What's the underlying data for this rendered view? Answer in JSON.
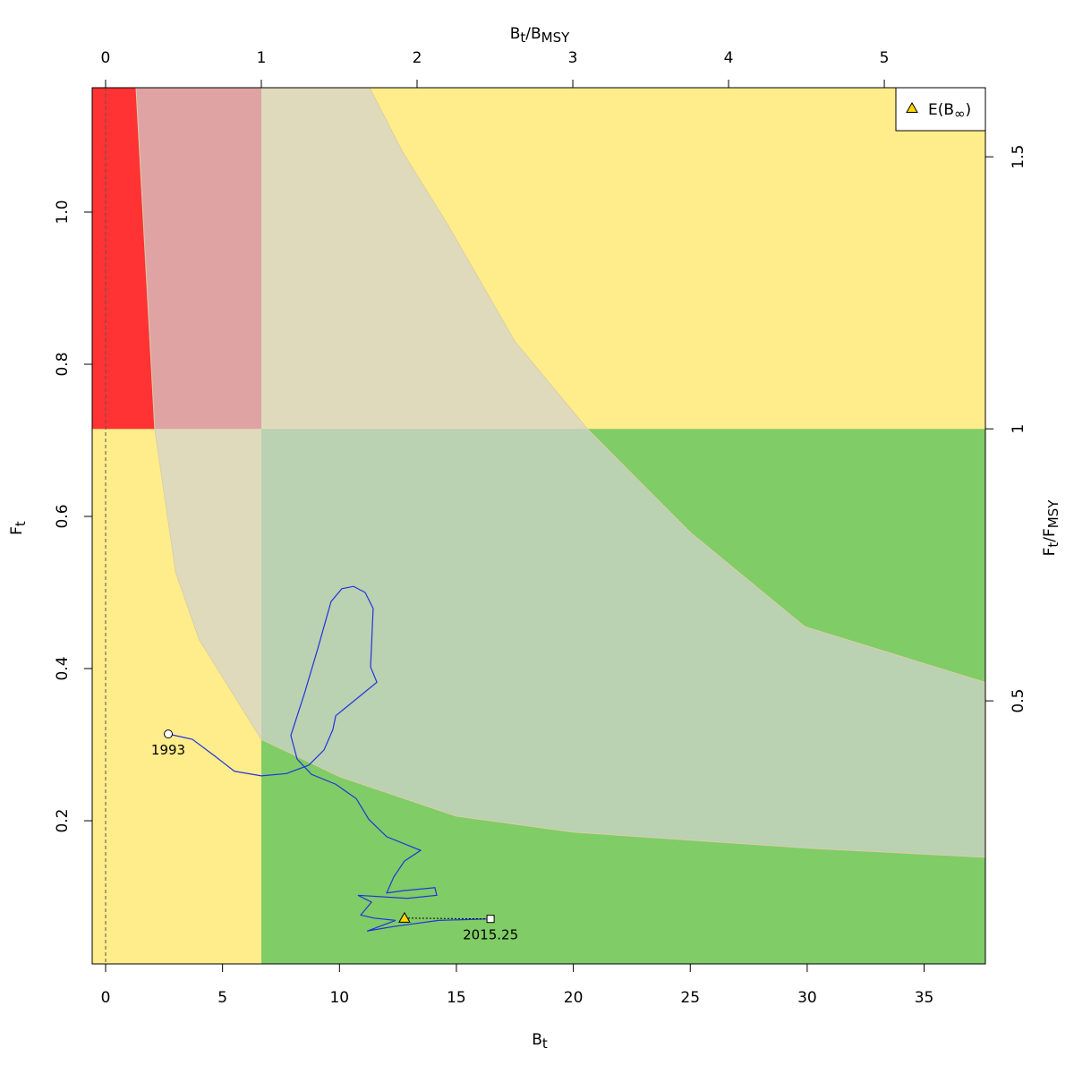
{
  "chart_data": {
    "type": "kobe",
    "xlabel": [
      "B",
      "t"
    ],
    "ylabel": [
      "F",
      "t"
    ],
    "x2label": [
      "B",
      "t",
      "/B",
      "MSY"
    ],
    "y2label": [
      "F",
      "t",
      "/F",
      "MSY"
    ],
    "xlim": [
      -0.574,
      37.62
    ],
    "ylim": [
      0.0118,
      1.1635
    ],
    "xticks": [
      0,
      5,
      10,
      15,
      20,
      25,
      30,
      35
    ],
    "yticks": [
      0.2,
      0.4,
      0.6,
      0.8,
      {
        "value": 1,
        "label": "1.0"
      }
    ],
    "x2lim": [
      -0.086,
      5.649
    ],
    "x2ticks": [
      0,
      1,
      2,
      3,
      4,
      5
    ],
    "y2lim": [
      0.0165,
      1.627
    ],
    "y2ticks": [
      0.5,
      1,
      1.5
    ],
    "bmsy": 6.66,
    "fmsy": 0.715,
    "zone_colors": {
      "background": "#ffec8b",
      "red": "#ff3333",
      "green": "#80cc66",
      "band": "#d3d3d3"
    },
    "band": {
      "upper": {
        "x": [
          11.29,
          12.7,
          14.6,
          17.5,
          20.6,
          25,
          29.9,
          37.6
        ],
        "y": [
          1.1635,
          1.079,
          0.985,
          0.83,
          0.715,
          0.579,
          0.455,
          0.382
        ]
      },
      "lower": {
        "x": [
          1.3,
          2.1,
          3,
          4,
          6.66,
          10,
          15,
          20,
          30,
          37.6
        ],
        "y": [
          1.1635,
          0.715,
          0.526,
          0.438,
          0.307,
          0.258,
          0.206,
          0.185,
          0.164,
          0.152
        ]
      }
    },
    "series": [
      {
        "color": "#2233dd",
        "x": [
          2.68,
          3.71,
          4.67,
          5.51,
          6.66,
          7.73,
          8.69,
          9.34,
          9.72,
          9.84,
          11.6,
          11.33,
          11.44,
          11.1,
          10.6,
          10.1,
          9.64,
          9.07,
          8.5,
          7.92,
          8.19,
          8.8,
          9.84,
          10.72,
          11.25,
          12.02,
          13.47,
          12.78,
          12.32,
          12.02,
          12.71,
          14.08,
          14.16,
          12.9,
          10.79,
          11.37,
          10.91,
          11.48,
          12.4,
          11.18,
          12.32,
          14.24,
          16.46
        ],
        "values": [
          0.314,
          0.307,
          0.285,
          0.265,
          0.259,
          0.262,
          0.273,
          0.293,
          0.32,
          0.338,
          0.382,
          0.402,
          0.479,
          0.5,
          0.508,
          0.505,
          0.488,
          0.426,
          0.367,
          0.312,
          0.281,
          0.261,
          0.248,
          0.229,
          0.202,
          0.179,
          0.161,
          0.147,
          0.126,
          0.105,
          0.108,
          0.112,
          0.102,
          0.098,
          0.102,
          0.093,
          0.076,
          0.072,
          0.069,
          0.055,
          0.061,
          0.069,
          0.071
        ]
      }
    ],
    "start": {
      "label": "1993",
      "x": 2.68,
      "y": 0.314
    },
    "end": {
      "label": "2015.25",
      "x": 16.46,
      "y": 0.071
    },
    "equilibrium": {
      "name": [
        "E(B",
        "∞",
        ")"
      ],
      "x": 12.78,
      "y": 0.072,
      "color": "#ffd700"
    }
  }
}
